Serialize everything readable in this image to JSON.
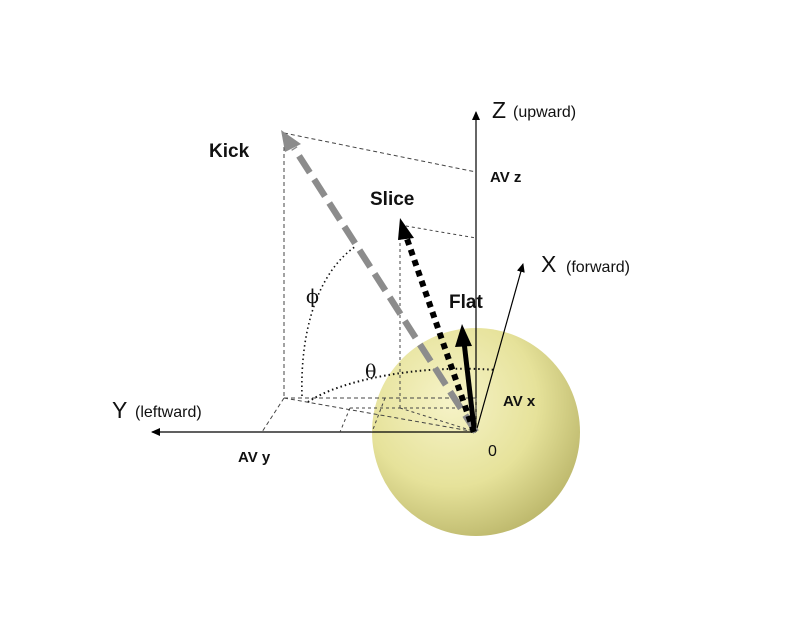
{
  "axes": {
    "z": {
      "letter": "Z",
      "desc": "(upward)"
    },
    "x": {
      "letter": "X",
      "desc": "(forward)"
    },
    "y": {
      "letter": "Y",
      "desc": "(leftward)"
    },
    "origin": "0"
  },
  "vectors": {
    "kick": {
      "label": "Kick",
      "color": "#8c8c8c"
    },
    "slice": {
      "label": "Slice",
      "color": "#000000"
    },
    "flat": {
      "label": "Flat",
      "color": "#000000"
    }
  },
  "components": {
    "avz": "AV z",
    "avx": "AV x",
    "avy": "AV y"
  },
  "angles": {
    "phi": "ϕ",
    "theta": "θ"
  },
  "ball": {
    "color": "#e6e29a",
    "highlight": "#f6f3c8",
    "shade": "#b5b063"
  }
}
